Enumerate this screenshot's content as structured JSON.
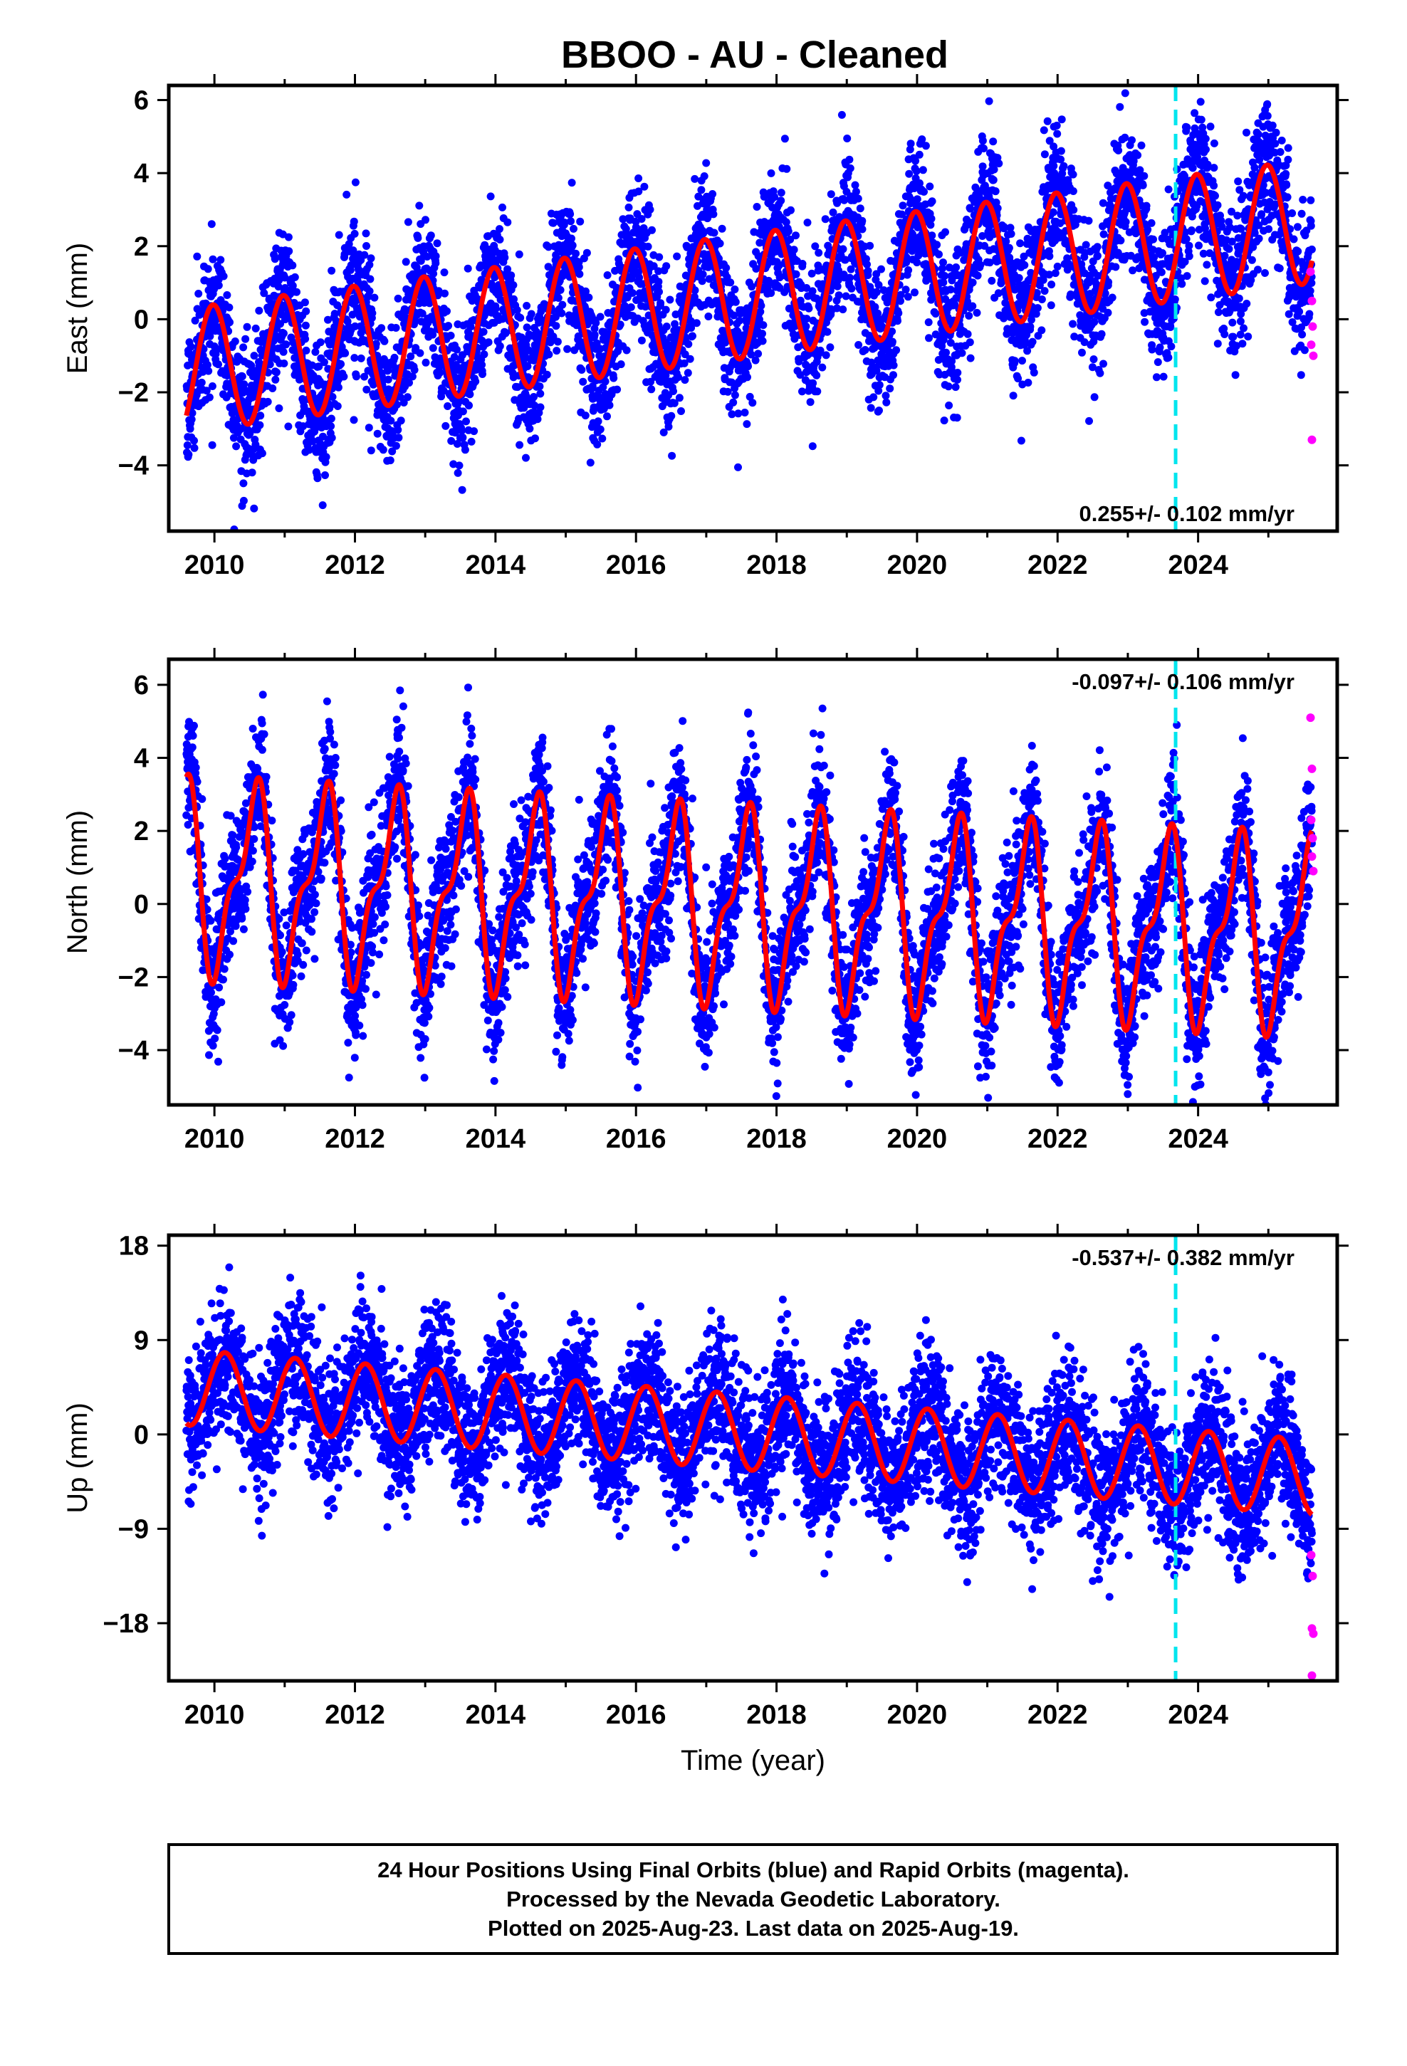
{
  "title": "BBOO  - AU - Cleaned",
  "colors": {
    "final_orbits": "#0000ff",
    "rapid_orbits": "#ff00ff",
    "model_fit": "#ff0000",
    "event_line": "#00e5ee"
  },
  "chart_data": [
    {
      "type": "scatter",
      "name": "East",
      "ylabel": "East (mm)",
      "xlabel": "",
      "xlim": [
        2009.35,
        2025.98
      ],
      "ylim": [
        -5.8,
        6.4
      ],
      "xticks": [
        2010,
        2012,
        2014,
        2016,
        2018,
        2020,
        2022,
        2024
      ],
      "yticks": [
        -4,
        -2,
        0,
        2,
        4,
        6
      ],
      "rate": "0.255+/- 0.102 mm/yr",
      "rate_pos": "bottom-right",
      "event_line_x": 2023.68,
      "model": {
        "start": 2009.6,
        "end": 2025.62,
        "offset": -1.4,
        "trend": 0.255,
        "amp_annual": 1.7,
        "phase_annual": 0.73,
        "amp_semi": 0.0,
        "phase_semi": 0.0
      },
      "scatter": {
        "noise": 0.95
      },
      "rapid_points": [
        [
          2025.6,
          1.3
        ],
        [
          2025.62,
          0.5
        ],
        [
          2025.63,
          -0.2
        ],
        [
          2025.61,
          -0.7
        ],
        [
          2025.64,
          -1.0
        ],
        [
          2025.62,
          -3.3
        ]
      ]
    },
    {
      "type": "scatter",
      "name": "North",
      "ylabel": "North (mm)",
      "xlabel": "",
      "xlim": [
        2009.35,
        2025.98
      ],
      "ylim": [
        -5.5,
        6.7
      ],
      "xticks": [
        2010,
        2012,
        2014,
        2016,
        2018,
        2020,
        2022,
        2024
      ],
      "yticks": [
        -4,
        -2,
        0,
        2,
        4,
        6
      ],
      "rate": "-0.097+/- 0.106 mm/yr",
      "rate_pos": "top-right",
      "event_line_x": 2023.68,
      "model": {
        "start": 2009.6,
        "end": 2025.62,
        "offset": 0.7,
        "trend": -0.097,
        "amp_annual": 2.3,
        "phase_annual": 0.3,
        "amp_semi": 1.0,
        "phase_semi": 0.55
      },
      "scatter": {
        "noise": 0.95
      },
      "rapid_points": [
        [
          2025.6,
          5.1
        ],
        [
          2025.62,
          3.7
        ],
        [
          2025.61,
          2.3
        ],
        [
          2025.63,
          1.8
        ],
        [
          2025.62,
          1.3
        ],
        [
          2025.64,
          0.9
        ]
      ]
    },
    {
      "type": "scatter",
      "name": "Up",
      "ylabel": "Up (mm)",
      "xlabel": "Time (year)",
      "xlim": [
        2009.35,
        2025.98
      ],
      "ylim": [
        -23.5,
        19.0
      ],
      "xticks": [
        2010,
        2012,
        2014,
        2016,
        2018,
        2020,
        2022,
        2024
      ],
      "yticks": [
        -18,
        -9,
        0,
        9,
        18
      ],
      "rate": "-0.537+/- 0.382 mm/yr",
      "rate_pos": "top-right",
      "event_line_x": 2023.68,
      "model": {
        "start": 2009.6,
        "end": 2025.62,
        "offset": 4.5,
        "trend": -0.537,
        "amp_annual": 3.6,
        "phase_annual": 0.9,
        "amp_semi": 0.0,
        "phase_semi": 0.0
      },
      "scatter": {
        "noise": 3.3
      },
      "rapid_points": [
        [
          2025.61,
          -11.5
        ],
        [
          2025.63,
          -13.5
        ],
        [
          2025.62,
          -18.5
        ],
        [
          2025.64,
          -19.0
        ],
        [
          2025.62,
          -23.0
        ]
      ]
    }
  ],
  "caption": {
    "line1": "24 Hour Positions Using Final Orbits (blue) and Rapid Orbits (magenta).",
    "line2": "Processed by the Nevada Geodetic Laboratory.",
    "line3": "Plotted on 2025-Aug-23. Last data on 2025-Aug-19."
  }
}
